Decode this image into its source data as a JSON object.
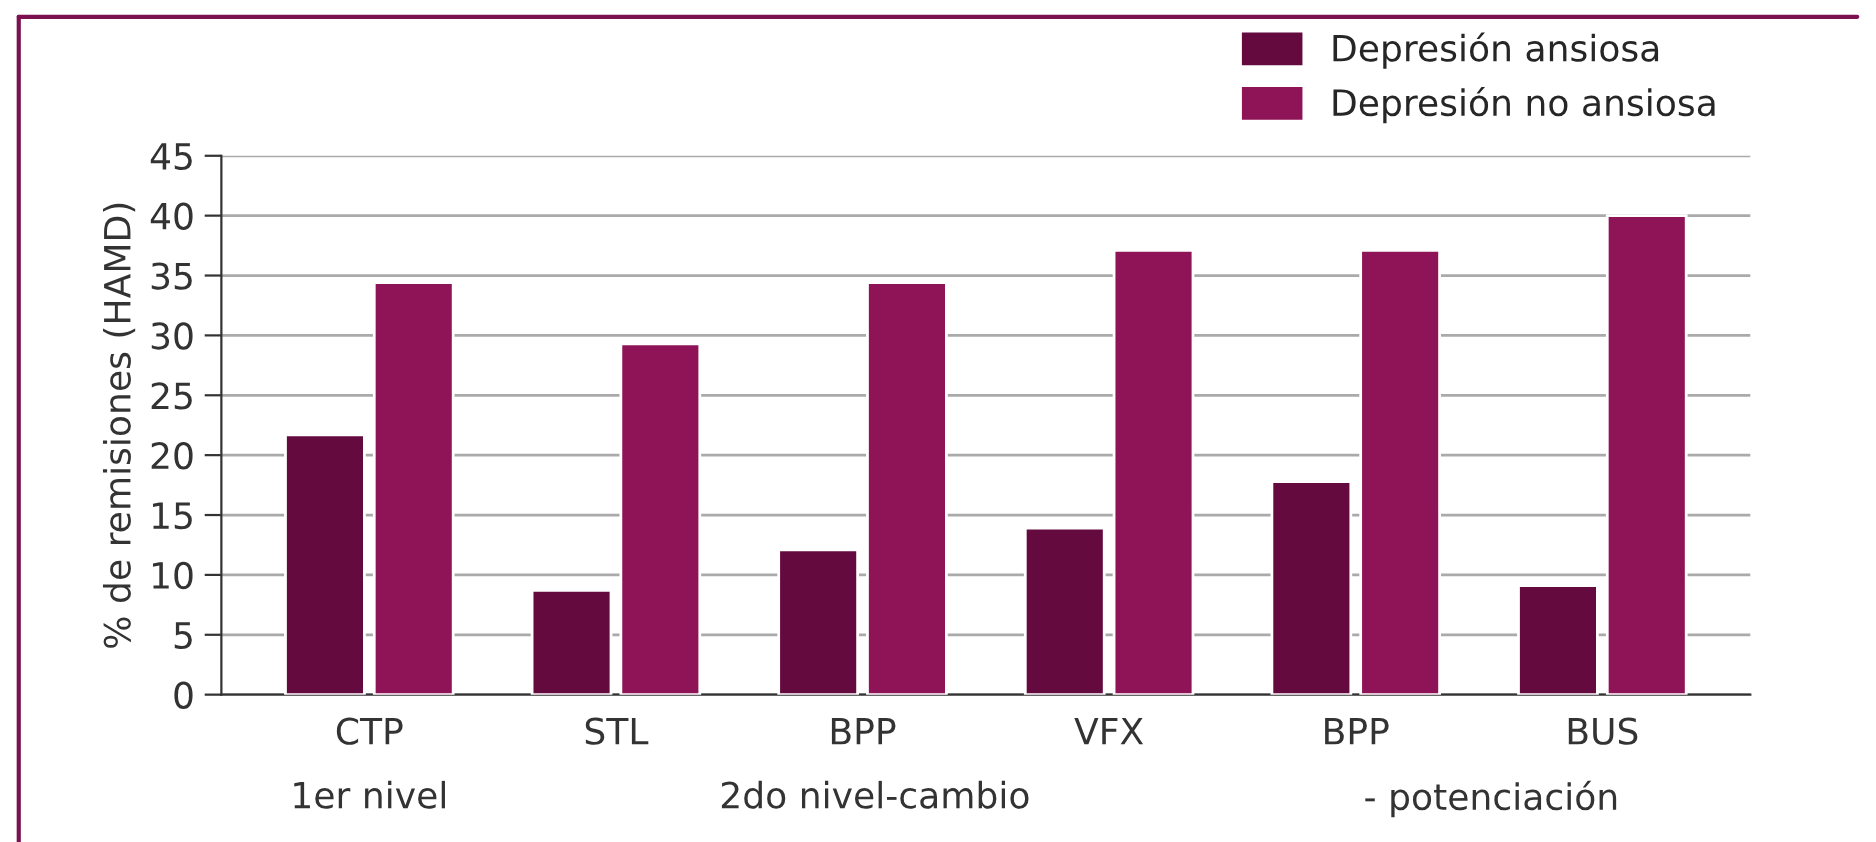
{
  "chart_data": {
    "type": "bar",
    "ylabel": "% de remisiones (HAMD)",
    "categories": [
      "CTP",
      "STL",
      "BPP",
      "VFX",
      "BPP",
      "BUS"
    ],
    "series": [
      {
        "name": "Depresión ansiosa",
        "color": "#650a3e",
        "values": [
          21.7,
          8.7,
          12.1,
          13.9,
          17.8,
          9.1
        ]
      },
      {
        "name": "Depresión no ansiosa",
        "color": "#8e1457",
        "values": [
          34.4,
          29.3,
          34.4,
          37.1,
          37.1,
          40
        ]
      }
    ],
    "annotations": [
      "1er nivel",
      "2do nivel-cambio",
      "- potenciación"
    ],
    "ylim": [
      0,
      45
    ],
    "yticks": [
      0,
      5,
      10,
      15,
      20,
      25,
      30,
      35,
      40,
      45
    ],
    "grid": "y",
    "legend": "top right"
  }
}
